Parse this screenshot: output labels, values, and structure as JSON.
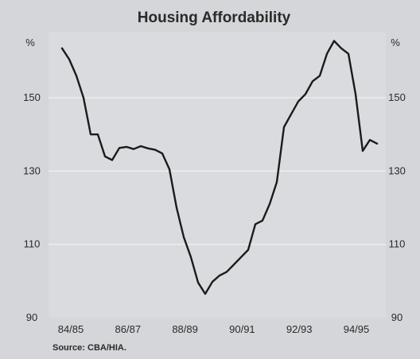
{
  "chart_data": {
    "type": "line",
    "title": "Housing Affordability",
    "ylabel_left": "%",
    "ylabel_right": "%",
    "source": "Source: CBA/HIA.",
    "ylim": [
      90,
      168
    ],
    "y_ticks": [
      90,
      110,
      130,
      150
    ],
    "x_tick_labels": [
      "84/85",
      "86/87",
      "88/89",
      "90/91",
      "92/93",
      "94/95"
    ],
    "grid": true,
    "series": [
      {
        "values": [
          163.5,
          160.5,
          156,
          150,
          140,
          140,
          134,
          133,
          136.3,
          136.6,
          136,
          136.8,
          136.2,
          135.8,
          134.8,
          130.5,
          120,
          112,
          106.5,
          99.6,
          96.5,
          99.8,
          101.5,
          102.5,
          104.5,
          106.5,
          108.5,
          115.5,
          116.5,
          121,
          127,
          142,
          145.5,
          149,
          151,
          154.5,
          156,
          162,
          165.5,
          163.5,
          162,
          151,
          135.5,
          138.5,
          137.5
        ]
      }
    ]
  }
}
